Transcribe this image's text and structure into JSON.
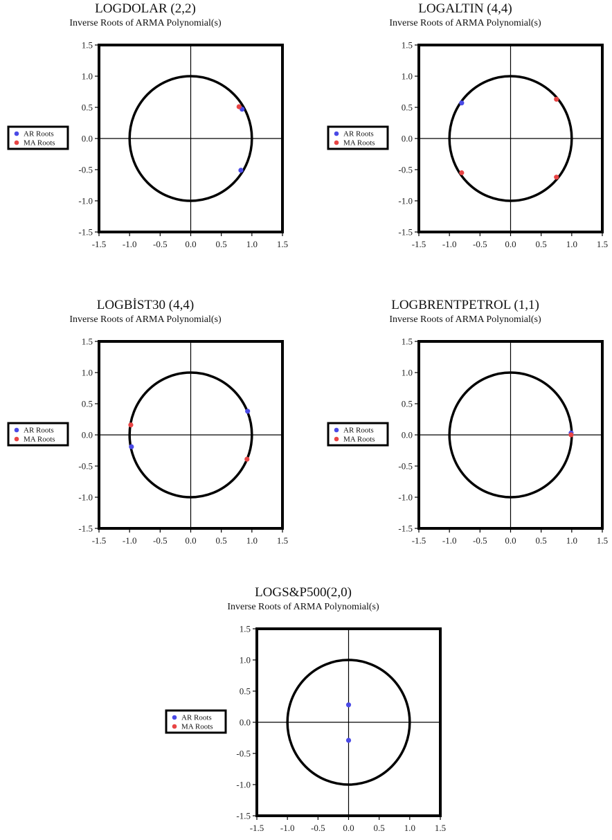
{
  "legend": {
    "ar_label": "AR Roots",
    "ma_label": "MA Roots"
  },
  "colors": {
    "ar": "#4a4ae6",
    "ma": "#e84545",
    "frame": "#000000"
  },
  "chart_data": [
    {
      "type": "scatter",
      "title": "LOGDOLAR (2,2)",
      "subtitle": "Inverse Roots of ARMA Polynomial(s)",
      "xlim": [
        -1.5,
        1.5
      ],
      "ylim": [
        -1.5,
        1.5
      ],
      "xticks": [
        "-1.5",
        "-1.0",
        "-0.5",
        "0.0",
        "0.5",
        "1.0",
        "1.5"
      ],
      "yticks": [
        "1.5",
        "1.0",
        "0.5",
        "0.0",
        "-0.5",
        "-1.0",
        "-1.5"
      ],
      "unit_circle": true,
      "grid": false,
      "legend_position": "left",
      "series": [
        {
          "name": "AR Roots",
          "points": [
            [
              0.84,
              0.47
            ],
            [
              0.82,
              -0.51
            ]
          ]
        },
        {
          "name": "MA Roots",
          "points": [
            [
              0.79,
              0.51
            ]
          ]
        }
      ]
    },
    {
      "type": "scatter",
      "title": "LOGALTIN (4,4)",
      "subtitle": "Inverse Roots of ARMA Polynomial(s)",
      "xlim": [
        -1.5,
        1.5
      ],
      "ylim": [
        -1.5,
        1.5
      ],
      "xticks": [
        "-1.5",
        "-1.0",
        "-0.5",
        "0.0",
        "0.5",
        "1.0",
        "1.5"
      ],
      "yticks": [
        "1.5",
        "1.0",
        "0.5",
        "0.0",
        "-0.5",
        "-1.0",
        "-1.5"
      ],
      "unit_circle": true,
      "grid": false,
      "legend_position": "left",
      "series": [
        {
          "name": "AR Roots",
          "points": [
            [
              -0.8,
              0.57
            ]
          ]
        },
        {
          "name": "MA Roots",
          "points": [
            [
              0.75,
              0.63
            ],
            [
              -0.8,
              -0.55
            ],
            [
              0.75,
              -0.62
            ]
          ]
        }
      ]
    },
    {
      "type": "scatter",
      "title": "LOGBİST30 (4,4)",
      "subtitle": "Inverse Roots of ARMA Polynomial(s)",
      "xlim": [
        -1.5,
        1.5
      ],
      "ylim": [
        -1.5,
        1.5
      ],
      "xticks": [
        "-1.5",
        "-1.0",
        "-0.5",
        "0.0",
        "0.5",
        "1.0",
        "1.5"
      ],
      "yticks": [
        "1.5",
        "1.0",
        "0.5",
        "0.0",
        "-0.5",
        "-1.0",
        "-1.5"
      ],
      "unit_circle": true,
      "grid": false,
      "legend_position": "left",
      "series": [
        {
          "name": "AR Roots",
          "points": [
            [
              0.93,
              0.38
            ],
            [
              -0.97,
              -0.19
            ]
          ]
        },
        {
          "name": "MA Roots",
          "points": [
            [
              -0.98,
              0.16
            ],
            [
              0.92,
              -0.39
            ]
          ]
        }
      ]
    },
    {
      "type": "scatter",
      "title": "LOGBRENTPETROL (1,1)",
      "subtitle": "Inverse Roots of ARMA Polynomial(s)",
      "xlim": [
        -1.5,
        1.5
      ],
      "ylim": [
        -1.5,
        1.5
      ],
      "xticks": [
        "-1.5",
        "-1.0",
        "-0.5",
        "0.0",
        "0.5",
        "1.0",
        "1.5"
      ],
      "yticks": [
        "1.5",
        "1.0",
        "0.5",
        "0.0",
        "-0.5",
        "-1.0",
        "-1.5"
      ],
      "unit_circle": true,
      "grid": false,
      "legend_position": "left",
      "series": [
        {
          "name": "AR Roots",
          "points": [
            [
              0.99,
              0.03
            ]
          ]
        },
        {
          "name": "MA Roots",
          "points": [
            [
              0.99,
              0.0
            ]
          ]
        }
      ]
    },
    {
      "type": "scatter",
      "title": "LOGS&P500(2,0)",
      "subtitle": "Inverse Roots of ARMA Polynomial(s)",
      "xlim": [
        -1.5,
        1.5
      ],
      "ylim": [
        -1.5,
        1.5
      ],
      "xticks": [
        "-1.5",
        "-1.0",
        "-0.5",
        "0.0",
        "0.5",
        "1.0",
        "1.5"
      ],
      "yticks": [
        "1.5",
        "1.0",
        "0.5",
        "0.0",
        "-0.5",
        "-1.0",
        "-1.5"
      ],
      "unit_circle": true,
      "grid": false,
      "legend_position": "left",
      "series": [
        {
          "name": "AR Roots",
          "points": [
            [
              0.0,
              0.28
            ],
            [
              0.0,
              -0.29
            ]
          ]
        },
        {
          "name": "MA Roots",
          "points": []
        }
      ]
    }
  ]
}
